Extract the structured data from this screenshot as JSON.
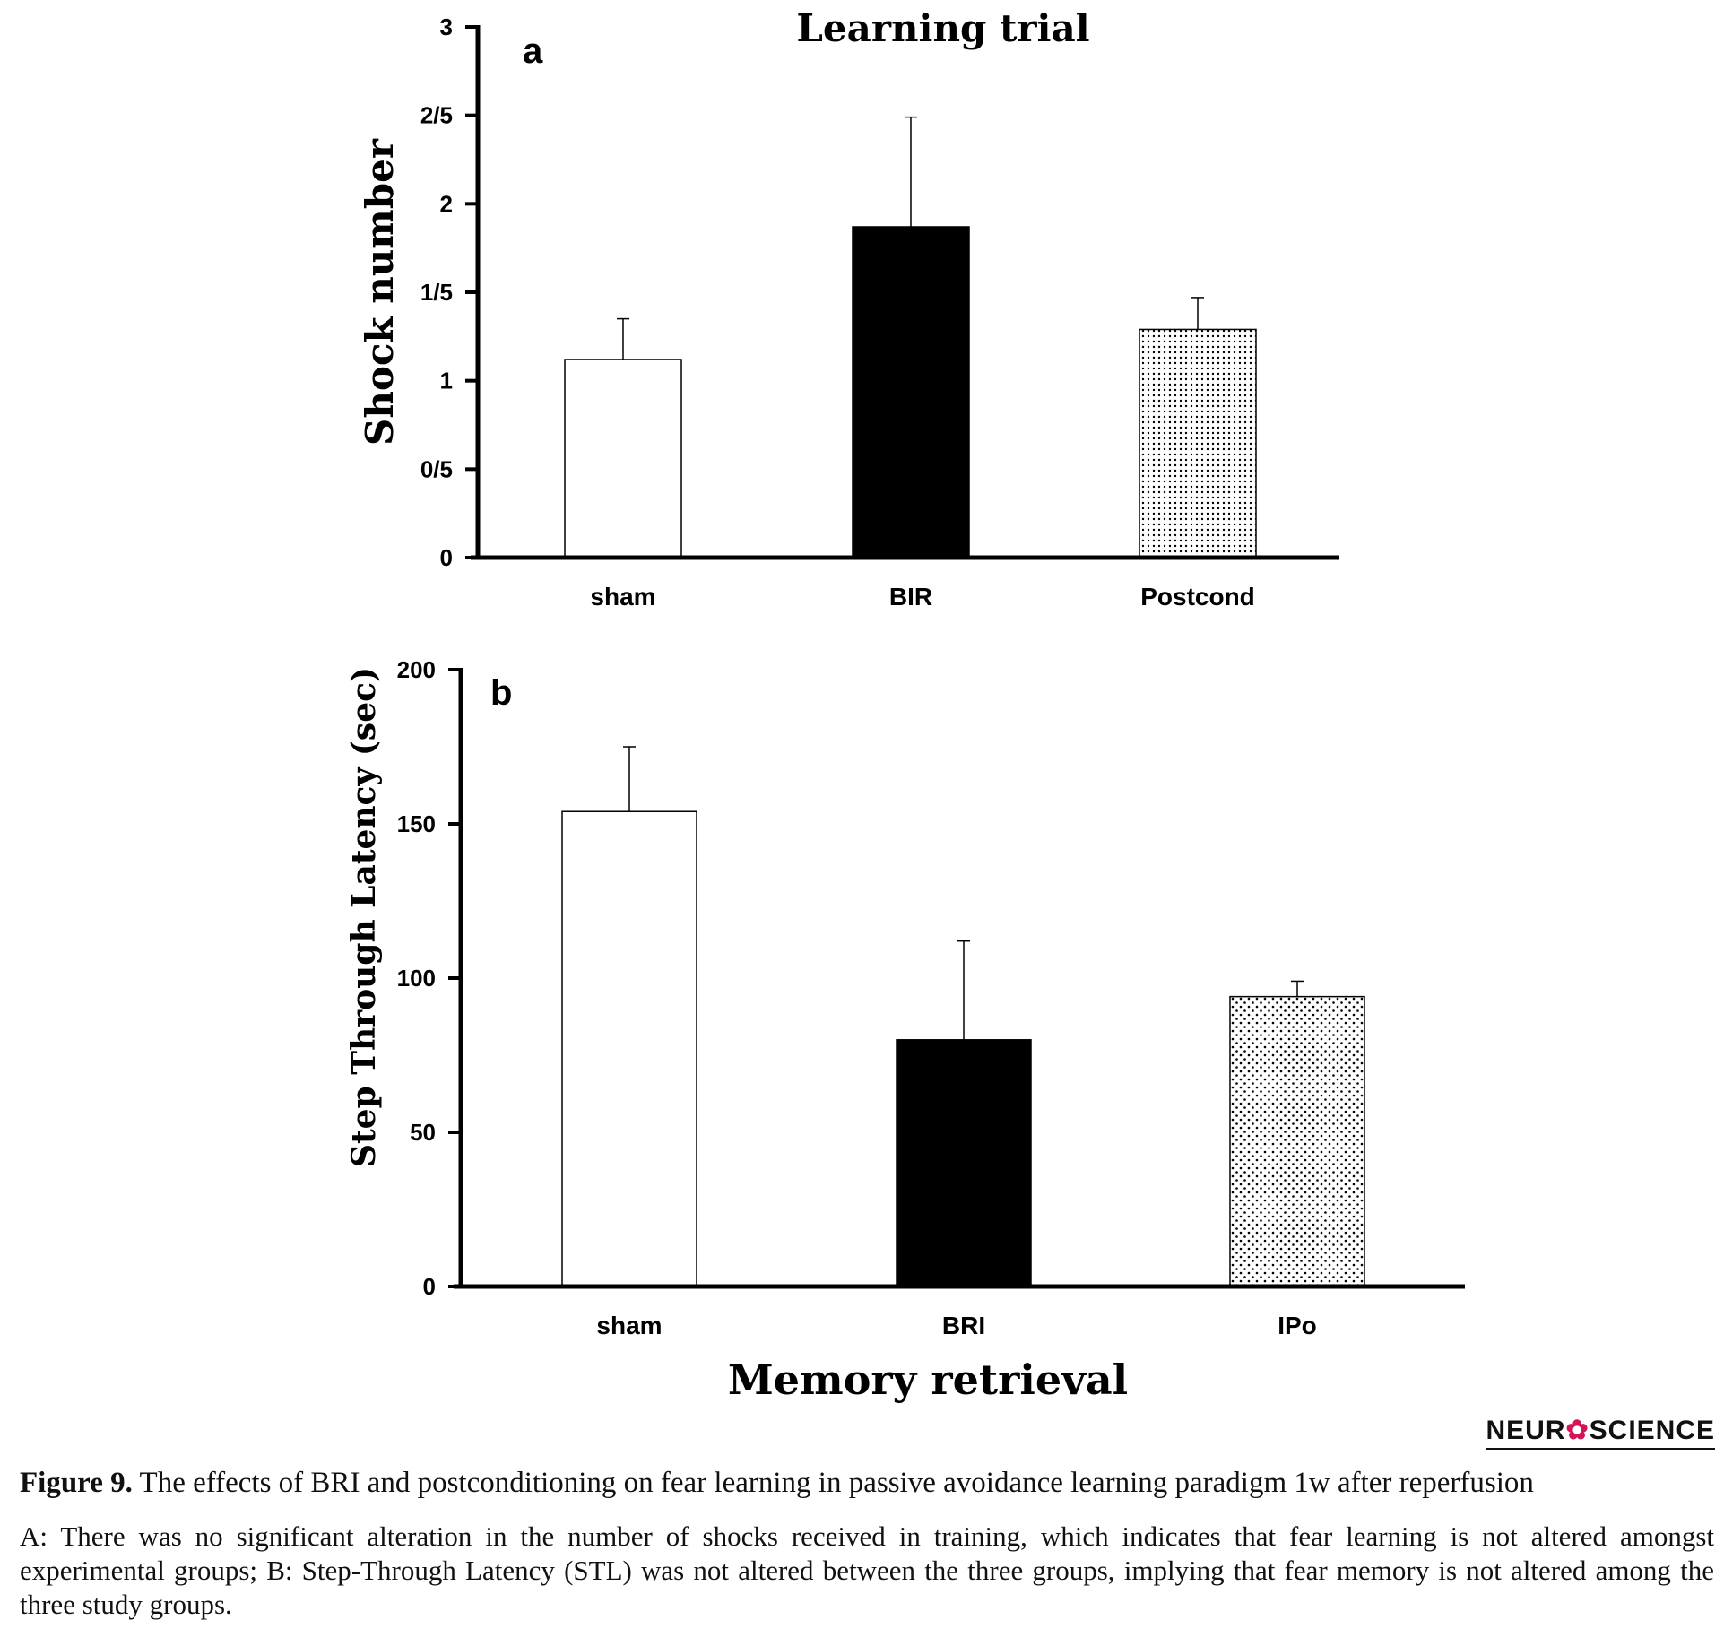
{
  "chart_data": [
    {
      "type": "bar",
      "panel_label": "a",
      "title": "Learning trial",
      "xlabel": "",
      "ylabel": "Shock number",
      "categories": [
        "sham",
        "BIR",
        "Postcond"
      ],
      "values": [
        1.12,
        1.87,
        1.29
      ],
      "errors": [
        0.23,
        0.62,
        0.18
      ],
      "fills": [
        "white",
        "black",
        "dots-dense"
      ],
      "ylim": [
        0,
        3
      ],
      "yticks": [
        0,
        0.5,
        1,
        1.5,
        2,
        2.5,
        3
      ],
      "ytick_labels": [
        "0",
        "0/5",
        "1",
        "1/5",
        "2",
        "2/5",
        "3"
      ],
      "grid": false
    },
    {
      "type": "bar",
      "panel_label": "b",
      "title": "",
      "xlabel": "Memory retrieval",
      "ylabel": "Step Through Latency (sec)",
      "categories": [
        "sham",
        "BRI",
        "IPo"
      ],
      "values": [
        154,
        80,
        94
      ],
      "errors": [
        21,
        32,
        5
      ],
      "fills": [
        "white",
        "black",
        "dots-sparse"
      ],
      "ylim": [
        0,
        200
      ],
      "yticks": [
        0,
        50,
        100,
        150,
        200
      ],
      "ytick_labels": [
        "0",
        "50",
        "100",
        "150",
        "200"
      ],
      "grid": false
    }
  ],
  "logo": {
    "text_before": "NEUR",
    "mark": "✿",
    "text_after": "SCIENCE"
  },
  "caption": {
    "figure_label": "Figure 9.",
    "figure_title": "The effects of BRI and postconditioning on fear learning in passive avoidance learning paradigm 1w after reperfusion",
    "body": "A: There was no significant alteration in the number of shocks received in training, which indicates that fear learning is not altered amongst experimental groups; B: Step-Through Latency (STL) was not altered between the three groups, implying that fear memory is not altered among the three study groups."
  },
  "colors": {
    "bar_black": "#000000",
    "axis": "#000000",
    "logo_accent": "#d4145a"
  }
}
